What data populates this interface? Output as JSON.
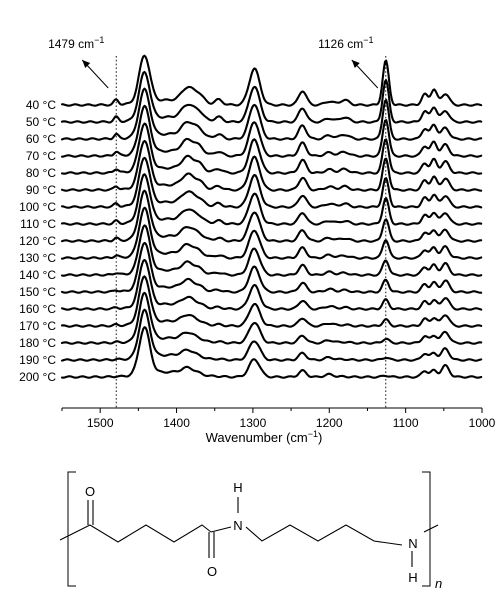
{
  "chart_data": {
    "type": "line",
    "x_axis": {
      "label_text": "Wavenumber (cm",
      "label_unit_sup": "−1",
      "label_close": ")",
      "range": [
        1550,
        1000
      ],
      "reversed": true,
      "ticks": [
        {
          "value": 1500,
          "label": "1500"
        },
        {
          "value": 1400,
          "label": "1400"
        },
        {
          "value": 1300,
          "label": "1300"
        },
        {
          "value": 1200,
          "label": "1200"
        },
        {
          "value": 1100,
          "label": "1100"
        },
        {
          "value": 1000,
          "label": "1000"
        }
      ]
    },
    "reference_lines": [
      {
        "value": 1479,
        "label": "1479 cm",
        "sup": "−1",
        "arrow": "left"
      },
      {
        "value": 1126,
        "label": "1126 cm",
        "sup": "−1",
        "arrow": "left"
      }
    ],
    "peak_model": {
      "wavenumbers": [
        1479,
        1442,
        1385,
        1370,
        1345,
        1298,
        1235,
        1200,
        1180,
        1126,
        1075,
        1063,
        1048
      ],
      "comment_free_values": true
    },
    "series": [
      {
        "label": "40 °C",
        "amplitudes": [
          0.35,
          3.3,
          1.0,
          0.55,
          0.35,
          2.55,
          1.0,
          0.25,
          0.35,
          3.1,
          0.75,
          1.1,
          0.8
        ]
      },
      {
        "label": "50 °C",
        "amplitudes": [
          0.33,
          3.3,
          0.98,
          0.52,
          0.33,
          2.5,
          0.98,
          0.25,
          0.33,
          2.95,
          0.74,
          1.06,
          0.8
        ]
      },
      {
        "label": "60 °C",
        "amplitudes": [
          0.31,
          3.3,
          0.95,
          0.5,
          0.3,
          2.45,
          0.95,
          0.25,
          0.31,
          2.8,
          0.72,
          1.02,
          0.8
        ]
      },
      {
        "label": "70 °C",
        "amplitudes": [
          0.29,
          3.3,
          0.92,
          0.47,
          0.28,
          2.4,
          0.92,
          0.24,
          0.29,
          2.6,
          0.7,
          0.98,
          0.8
        ]
      },
      {
        "label": "80 °C",
        "amplitudes": [
          0.27,
          3.3,
          0.9,
          0.44,
          0.26,
          2.35,
          0.9,
          0.24,
          0.27,
          2.4,
          0.68,
          0.94,
          0.8
        ]
      },
      {
        "label": "90 °C",
        "amplitudes": [
          0.25,
          3.3,
          0.86,
          0.41,
          0.24,
          2.3,
          0.86,
          0.23,
          0.25,
          2.2,
          0.66,
          0.9,
          0.8
        ]
      },
      {
        "label": "100 °C",
        "amplitudes": [
          0.23,
          3.3,
          0.83,
          0.38,
          0.22,
          2.22,
          0.83,
          0.23,
          0.23,
          2.0,
          0.64,
          0.86,
          0.8
        ]
      },
      {
        "label": "110 °C",
        "amplitudes": [
          0.2,
          3.3,
          0.79,
          0.35,
          0.2,
          2.15,
          0.8,
          0.22,
          0.21,
          1.8,
          0.62,
          0.82,
          0.8
        ]
      },
      {
        "label": "120 °C",
        "amplitudes": [
          0.18,
          3.3,
          0.75,
          0.32,
          0.18,
          2.05,
          0.76,
          0.22,
          0.19,
          1.55,
          0.6,
          0.78,
          0.8
        ]
      },
      {
        "label": "130 °C",
        "amplitudes": [
          0.16,
          3.3,
          0.71,
          0.29,
          0.16,
          1.95,
          0.72,
          0.21,
          0.17,
          1.3,
          0.58,
          0.74,
          0.8
        ]
      },
      {
        "label": "140 °C",
        "amplitudes": [
          0.13,
          3.3,
          0.66,
          0.26,
          0.14,
          1.85,
          0.68,
          0.21,
          0.15,
          1.05,
          0.56,
          0.7,
          0.8
        ]
      },
      {
        "label": "150 °C",
        "amplitudes": [
          0.11,
          3.3,
          0.62,
          0.23,
          0.12,
          1.75,
          0.64,
          0.2,
          0.13,
          0.85,
          0.54,
          0.66,
          0.8
        ]
      },
      {
        "label": "160 °C",
        "amplitudes": [
          0.09,
          3.3,
          0.58,
          0.2,
          0.1,
          1.65,
          0.6,
          0.2,
          0.11,
          0.65,
          0.52,
          0.62,
          0.8
        ]
      },
      {
        "label": "170 °C",
        "amplitudes": [
          0.07,
          3.3,
          0.54,
          0.17,
          0.08,
          1.55,
          0.56,
          0.19,
          0.09,
          0.45,
          0.5,
          0.58,
          0.8
        ]
      },
      {
        "label": "180 °C",
        "amplitudes": [
          0.05,
          3.3,
          0.5,
          0.14,
          0.06,
          1.45,
          0.52,
          0.19,
          0.07,
          0.3,
          0.48,
          0.54,
          0.8
        ]
      },
      {
        "label": "190 °C",
        "amplitudes": [
          0.03,
          3.3,
          0.46,
          0.11,
          0.04,
          1.35,
          0.48,
          0.18,
          0.05,
          0.18,
          0.46,
          0.5,
          0.8
        ]
      },
      {
        "label": "200 °C",
        "amplitudes": [
          0.02,
          3.3,
          0.42,
          0.08,
          0.02,
          1.25,
          0.44,
          0.18,
          0.03,
          0.1,
          0.44,
          0.46,
          0.8
        ]
      }
    ]
  },
  "structure": {
    "atom_o_top": "O",
    "atom_h_top": "H",
    "atom_n_left": "N",
    "atom_o_bottom": "O",
    "atom_n_right": "N",
    "atom_h_bottom": "H",
    "repeat_subscript": "n"
  }
}
